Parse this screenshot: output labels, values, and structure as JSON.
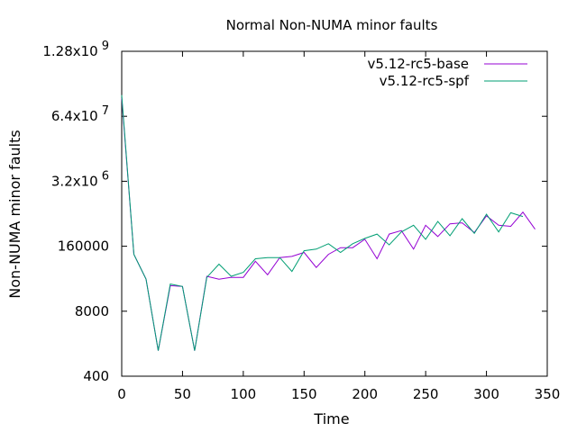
{
  "chart_data": {
    "type": "line",
    "title": "Normal Non-NUMA minor faults",
    "xlabel": "Time",
    "ylabel": "Non-NUMA minor faults",
    "xlim": [
      0,
      350
    ],
    "x_ticks": [
      0,
      50,
      100,
      150,
      200,
      250,
      300,
      350
    ],
    "x_tick_labels": [
      "0",
      "50",
      "100",
      "150",
      "200",
      "250",
      "300",
      "350"
    ],
    "y_scale": "log",
    "ylim": [
      400,
      1280000000
    ],
    "y_ticks": [
      400,
      8000,
      160000,
      3200000,
      64000000,
      1280000000
    ],
    "y_tick_labels": [
      {
        "base": "400",
        "exp": ""
      },
      {
        "base": "8000",
        "exp": ""
      },
      {
        "base": "160000",
        "exp": ""
      },
      {
        "base": "3.2x10",
        "exp": "6"
      },
      {
        "base": "6.4x10",
        "exp": "7"
      },
      {
        "base": "1.28x10",
        "exp": "9"
      }
    ],
    "legend_position": "top-right",
    "grid": false,
    "series": [
      {
        "name": "v5.12-rc5-base",
        "color": "#9400d3",
        "x": [
          0,
          10,
          20,
          30,
          40,
          50,
          60,
          70,
          80,
          90,
          100,
          110,
          120,
          130,
          140,
          150,
          160,
          170,
          180,
          190,
          200,
          210,
          220,
          230,
          240,
          250,
          260,
          270,
          280,
          290,
          300,
          310,
          320,
          330,
          340
        ],
        "y": [
          150000000,
          110000,
          35000,
          1300,
          26000,
          25000,
          1300,
          40000,
          35000,
          38000,
          38000,
          80000,
          43000,
          95000,
          100000,
          120000,
          60000,
          110000,
          150000,
          150000,
          220000,
          90000,
          280000,
          330000,
          140000,
          420000,
          250000,
          450000,
          470000,
          300000,
          650000,
          420000,
          400000,
          770000,
          350000
        ]
      },
      {
        "name": "v5.12-rc5-spf",
        "color": "#009e73",
        "x": [
          0,
          10,
          20,
          30,
          40,
          50,
          60,
          70,
          80,
          90,
          100,
          110,
          120,
          130,
          140,
          150,
          160,
          170,
          180,
          190,
          200,
          210,
          220,
          230,
          240,
          250,
          260,
          270,
          280,
          290,
          300,
          310,
          320,
          330
        ],
        "y": [
          170000000,
          110000,
          35000,
          1300,
          28000,
          25000,
          1300,
          38000,
          70000,
          40000,
          48000,
          90000,
          95000,
          95000,
          50000,
          130000,
          140000,
          180000,
          120000,
          180000,
          230000,
          280000,
          170000,
          310000,
          420000,
          220000,
          500000,
          260000,
          570000,
          290000,
          700000,
          310000,
          750000,
          630000
        ]
      }
    ]
  }
}
